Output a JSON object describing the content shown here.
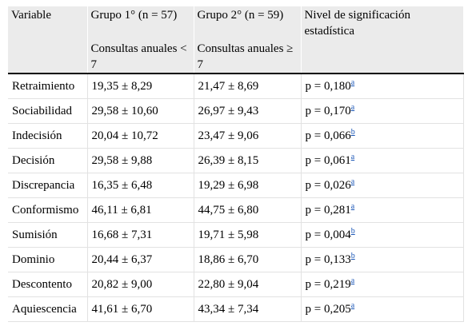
{
  "headers": {
    "variable": "Variable",
    "group1": "Grupo 1° (n = 57)",
    "group2": "Grupo 2° (n = 59)",
    "significance": "Nivel de significación estadística",
    "group1_sub": "Consultas anuales < 7",
    "group2_sub": "Consultas anuales ≥ 7"
  },
  "rows": [
    {
      "variable": "Retraimiento",
      "group1": "19,35 ± 8,29",
      "group2": "21,47 ± 8,69",
      "p": "p = 0,180",
      "note": "a"
    },
    {
      "variable": "Sociabilidad",
      "group1": "29,58 ± 10,60",
      "group2": "26,97 ± 9,43",
      "p": "p = 0,170",
      "note": "a"
    },
    {
      "variable": "Indecisión",
      "group1": "20,04 ± 10,72",
      "group2": "23,47 ± 9,06",
      "p": "p = 0,066",
      "note": "b"
    },
    {
      "variable": "Decisión",
      "group1": "29,58 ± 9,88",
      "group2": "26,39 ± 8,15",
      "p": "p = 0,061",
      "note": "a"
    },
    {
      "variable": "Discrepancia",
      "group1": "16,35 ± 6,48",
      "group2": "19,29 ± 6,98",
      "p": "p = 0,026",
      "note": "a"
    },
    {
      "variable": "Conformismo",
      "group1": "46,11 ± 6,81",
      "group2": "44,75 ± 6,80",
      "p": "p = 0,281",
      "note": "a"
    },
    {
      "variable": "Sumisión",
      "group1": "16,68 ± 7,31",
      "group2": "19,71 ± 5,98",
      "p": "p = 0,004",
      "note": "b"
    },
    {
      "variable": "Dominio",
      "group1": "20,44 ± 6,37",
      "group2": "18,86 ± 6,70",
      "p": "p = 0,133",
      "note": "b"
    },
    {
      "variable": "Descontento",
      "group1": "20,82 ± 9,00",
      "group2": "22,80 ± 9,04",
      "p": "p = 0,219",
      "note": "a"
    },
    {
      "variable": "Aquiescencia",
      "group1": "41,61 ± 6,70",
      "group2": "43,34 ± 7,34",
      "p": "p = 0,205",
      "note": "a"
    }
  ]
}
